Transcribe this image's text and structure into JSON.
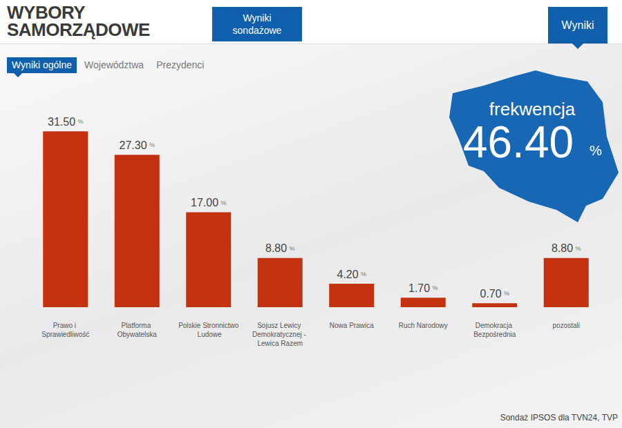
{
  "header": {
    "title": [
      "WYBORY",
      "SAMORZĄDOWE"
    ],
    "buttons": [
      "Wyniki sondażowe",
      "Wyniki"
    ]
  },
  "tabs": {
    "items": [
      "Wyniki ogólne",
      "Województwa",
      "Prezydenci"
    ],
    "active": "Wyniki ogólne"
  },
  "turnout": {
    "label": "frekwencja",
    "value": "46.40 %"
  },
  "source": "Sondaż IPSOS dla TVN24, TVP",
  "chart_data": {
    "type": "bar",
    "categories": [
      "Prawo i Sprawiedliwość",
      "Platforma Obywatelska",
      "Polskie Stronnictwo Ludowe",
      "Sojusz Lewicy Demokratycznej - Lewica Razem",
      "Nowa Prawica",
      "Ruch Narodowy",
      "Demokracja Bezpośrednia",
      "pozostali"
    ],
    "values": [
      31.5,
      27.3,
      17.0,
      8.8,
      4.2,
      1.7,
      0.7,
      8.8
    ],
    "value_labels": [
      "31.50 %",
      "27.30 %",
      "17.00 %",
      "8.80 %",
      "4.20 %",
      "1.70 %",
      "0.70 %",
      "8.80 %"
    ],
    "color": "#c4310f",
    "ylim": [
      0,
      35
    ],
    "grid": false,
    "data_labels": true,
    "tick_labels": "x"
  }
}
